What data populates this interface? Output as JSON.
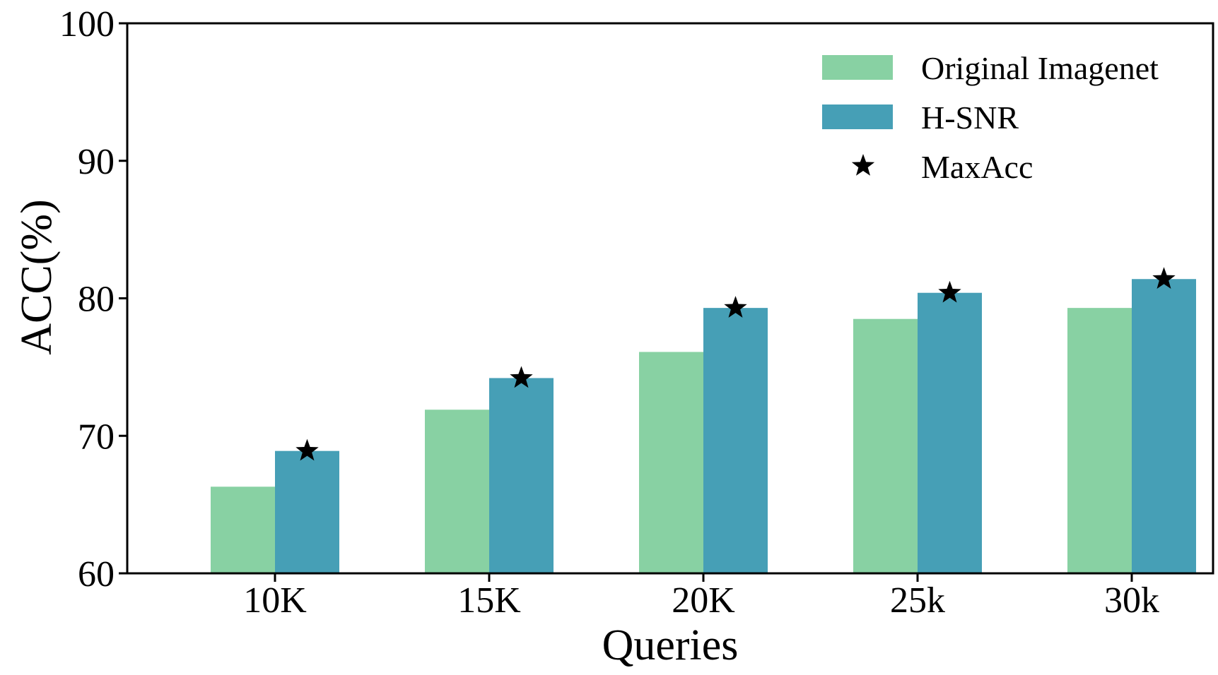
{
  "chart_data": {
    "type": "bar",
    "title": "",
    "xlabel": "Queries",
    "ylabel": "ACC(%)",
    "ylim": [
      60,
      100
    ],
    "yticks": [
      60,
      70,
      80,
      90,
      100
    ],
    "categories": [
      "10K",
      "15K",
      "20K",
      "25k",
      "30k"
    ],
    "series": [
      {
        "name": "Original Imagenet",
        "values": [
          66.3,
          71.9,
          76.1,
          78.5,
          79.3
        ],
        "color": "#88d1a3"
      },
      {
        "name": "H-SNR",
        "values": [
          68.9,
          74.2,
          79.3,
          80.4,
          81.4
        ],
        "color": "#469fb6"
      }
    ],
    "markers": {
      "name": "MaxAcc",
      "values": [
        68.9,
        74.2,
        79.3,
        80.4,
        81.4
      ],
      "color": "#000000"
    },
    "legend": "top-right",
    "grid": false
  }
}
